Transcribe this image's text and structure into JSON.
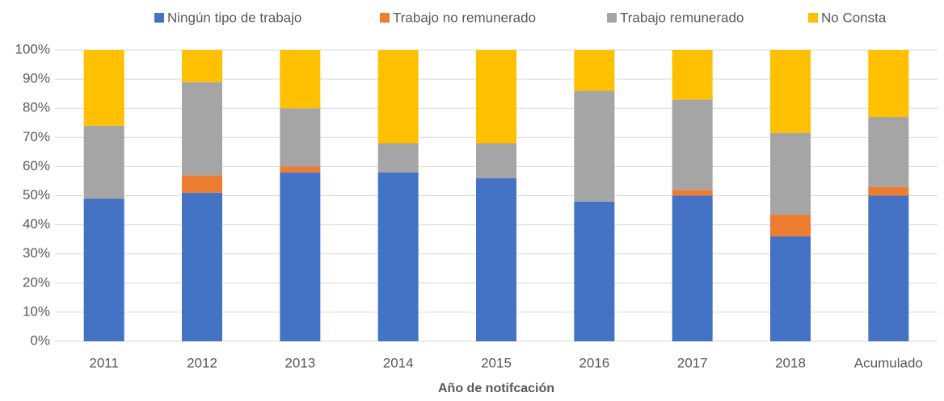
{
  "chart_data": {
    "type": "stacked_bar",
    "x_label": "Año de notifcación",
    "categories": [
      "2011",
      "2012",
      "2013",
      "2014",
      "2015",
      "2016",
      "2017",
      "2018",
      "Acumulado"
    ],
    "series": [
      {
        "name": "Ningún tipo de trabajo",
        "color": "#4472c4",
        "values": [
          49,
          51,
          58,
          58,
          56,
          48,
          50,
          36,
          50
        ]
      },
      {
        "name": "Trabajo no remunerado",
        "color": "#ed7d31",
        "values": [
          0,
          6,
          2,
          0,
          0,
          0,
          2,
          7.5,
          3
        ]
      },
      {
        "name": "Trabajo remunerado",
        "color": "#a5a5a5",
        "values": [
          25,
          32,
          20,
          10,
          12,
          38,
          31,
          28,
          24
        ]
      },
      {
        "name": "No Consta",
        "color": "#ffc000",
        "values": [
          26,
          11,
          20,
          32,
          32,
          14,
          17,
          28.5,
          23
        ]
      }
    ],
    "ylim": [
      0,
      100
    ],
    "yticks": [
      {
        "value": 0,
        "label": "0%"
      },
      {
        "value": 10,
        "label": "10%"
      },
      {
        "value": 20,
        "label": "20%"
      },
      {
        "value": 30,
        "label": "30%"
      },
      {
        "value": 40,
        "label": "40%"
      },
      {
        "value": 50,
        "label": "50%"
      },
      {
        "value": 60,
        "label": "60%"
      },
      {
        "value": 70,
        "label": "70%"
      },
      {
        "value": 80,
        "label": "80%"
      },
      {
        "value": 90,
        "label": "90%"
      },
      {
        "value": 100,
        "label": "100%"
      }
    ],
    "grid": true,
    "legend": "top"
  }
}
